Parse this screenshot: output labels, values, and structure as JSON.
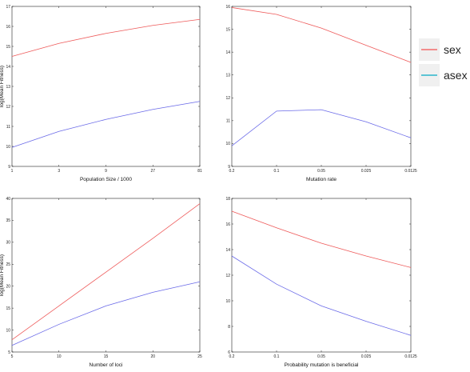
{
  "legend": {
    "items": [
      {
        "label": "sex",
        "color": "#f26b6b"
      },
      {
        "label": "asex",
        "color": "#2bb6cc"
      }
    ]
  },
  "chart_data": [
    {
      "type": "line",
      "xlabel": "Population Size / 1000",
      "ylabel": "log(Mean Fitness)",
      "x_ticks": [
        "1",
        "3",
        "9",
        "27",
        "81"
      ],
      "ylim": [
        9,
        17
      ],
      "y_ticks": [
        9,
        10,
        11,
        12,
        13,
        14,
        15,
        16,
        17
      ],
      "series": [
        {
          "name": "sex",
          "color": "#ee5a5a",
          "values": [
            14.5,
            15.15,
            15.65,
            16.05,
            16.35
          ]
        },
        {
          "name": "asex",
          "color": "#6a6ae8",
          "values": [
            9.95,
            10.75,
            11.35,
            11.85,
            12.25
          ]
        }
      ]
    },
    {
      "type": "line",
      "xlabel": "Mutation rate",
      "ylabel": "",
      "x_ticks": [
        "0.2",
        "0.1",
        "0.05",
        "0.025",
        "0.0125"
      ],
      "ylim": [
        9,
        16
      ],
      "y_ticks": [
        9,
        10,
        11,
        12,
        13,
        14,
        15,
        16
      ],
      "series": [
        {
          "name": "sex",
          "color": "#ee5a5a",
          "values": [
            15.95,
            15.65,
            15.05,
            14.3,
            13.55
          ]
        },
        {
          "name": "asex",
          "color": "#6a6ae8",
          "values": [
            9.9,
            11.42,
            11.48,
            10.95,
            10.25
          ]
        }
      ]
    },
    {
      "type": "line",
      "xlabel": "Number of loci",
      "ylabel": "log(Mean Fitness)",
      "x_ticks": [
        "5",
        "10",
        "15",
        "20",
        "25"
      ],
      "ylim": [
        5,
        40
      ],
      "y_ticks": [
        5,
        10,
        15,
        20,
        25,
        30,
        35,
        40
      ],
      "series": [
        {
          "name": "sex",
          "color": "#ee5a5a",
          "values": [
            7.8,
            15.5,
            23.2,
            30.9,
            38.8
          ]
        },
        {
          "name": "asex",
          "color": "#6a6ae8",
          "values": [
            6.5,
            11.3,
            15.5,
            18.6,
            21.0
          ]
        }
      ]
    },
    {
      "type": "line",
      "xlabel": "Probability mutation is beneficial",
      "ylabel": "",
      "x_ticks": [
        "0.2",
        "0.1",
        "0.05",
        "0.025",
        "0.0125"
      ],
      "ylim": [
        6,
        18
      ],
      "y_ticks": [
        6,
        8,
        10,
        12,
        14,
        16,
        18
      ],
      "series": [
        {
          "name": "sex",
          "color": "#ee5a5a",
          "values": [
            17.0,
            15.7,
            14.5,
            13.5,
            12.6
          ]
        },
        {
          "name": "asex",
          "color": "#6a6ae8",
          "values": [
            13.5,
            11.3,
            9.6,
            8.4,
            7.3
          ]
        }
      ]
    }
  ]
}
